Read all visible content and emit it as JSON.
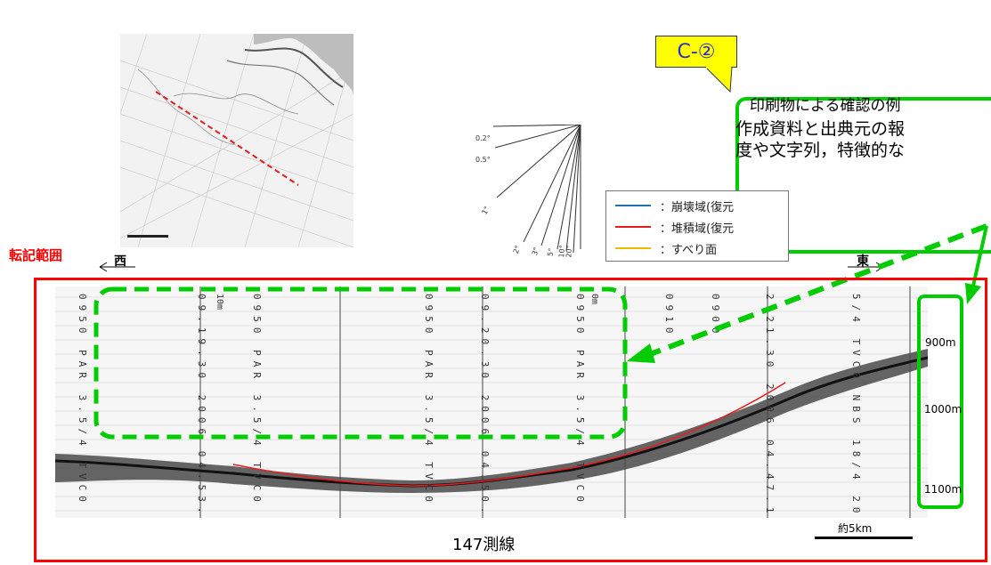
{
  "callout": {
    "label": "C-②"
  },
  "note": {
    "lines": [
      "印刷物による確認の例",
      "作成資料と出典元の報",
      "度や文字列，特徴的な"
    ]
  },
  "legend": {
    "items": [
      {
        "label": "：崩壊域(復元",
        "color": "#1f6fb5"
      },
      {
        "label": "：堆積域(復元",
        "color": "#e81c1c"
      },
      {
        "label": "：すべり面",
        "color": "#f5b800"
      }
    ]
  },
  "angle_fan": {
    "labels": [
      "0.2°",
      "0.5°",
      "1°",
      "2°",
      "3°",
      "5°",
      "10°",
      "20°"
    ]
  },
  "labels": {
    "transcription_range": "転記範囲",
    "west": "西",
    "east": "東",
    "survey_line": "147測線",
    "scale": "約5km"
  },
  "depths": [
    "900m",
    "1000m",
    "1100m"
  ],
  "record_text": {
    "columns": [
      "0950 PAR 3.5/4 TVC0 NBS 18/4",
      "09.19.30 2006 04.53.7/N 12",
      "0950 PAR 3.5/4 TVC0 NBS 18/4",
      "0950 PAR 3.5/4 TVC0 NBS",
      "09.20.30 2006 04.50.4 N 12",
      "0950 PAR 3.5/4 TVC0 NBS 18/4",
      "0910",
      "0900",
      "2.21.30 2006 04.47.1/N 142",
      "5/4 TVC0 NBS 18/4 20"
    ],
    "marker_label": "10m",
    "marker_label_2": "0m"
  },
  "colors": {
    "frame": "#ff0000",
    "highlight": "#00cc00",
    "callout_bg": "#ffff00",
    "callout_text": "#2b2bd0",
    "sediment_line": "#e81c1c"
  }
}
